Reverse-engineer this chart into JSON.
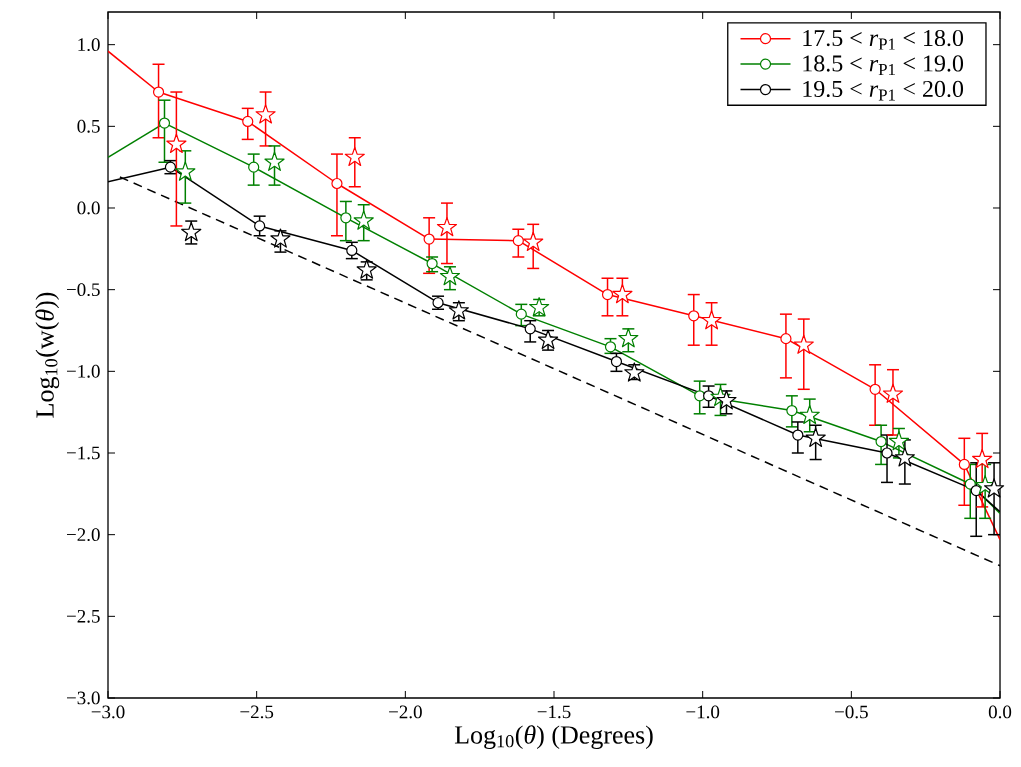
{
  "chart_data": {
    "type": "line",
    "xlabel": "Log$_{10}$(*θ*) (Degrees)",
    "ylabel": "Log$_{10}$(w(*θ*))",
    "xlim": [
      -3,
      0
    ],
    "ylim": [
      -3,
      1.2
    ],
    "xticks": [
      {
        "value": -3,
        "label": "−3.0"
      },
      {
        "value": -2.5,
        "label": "−2.5"
      },
      {
        "value": -2,
        "label": "−2.0"
      },
      {
        "value": -1.5,
        "label": "−1.5"
      },
      {
        "value": -1,
        "label": "−1.0"
      },
      {
        "value": -0.5,
        "label": "−0.5"
      },
      {
        "value": 0,
        "label": "0.0"
      }
    ],
    "yticks": [
      {
        "value": -3,
        "label": "−3.0"
      },
      {
        "value": -2.5,
        "label": "−2.5"
      },
      {
        "value": -2,
        "label": "−2.0"
      },
      {
        "value": -1.5,
        "label": "−1.5"
      },
      {
        "value": -1,
        "label": "−1.0"
      },
      {
        "value": -0.5,
        "label": "−0.5"
      },
      {
        "value": 0,
        "label": "0.0"
      },
      {
        "value": 0.5,
        "label": "0.5"
      },
      {
        "value": 1,
        "label": "1.0"
      }
    ],
    "legend": "top right",
    "series": [
      {
        "color": "#ff0000",
        "x": [
          -3,
          -2.83
        ],
        "values": [
          0.96,
          0.71
        ]
      },
      {
        "color": "#ff0000",
        "x": [
          -0.12,
          0
        ],
        "values": [
          -1.57,
          -2.03
        ]
      },
      {
        "color": "#008000",
        "x": [
          -3,
          -2.81
        ],
        "values": [
          0.31,
          0.52
        ]
      },
      {
        "color": "#008000",
        "x": [
          -0.1,
          0
        ],
        "values": [
          -1.69,
          -1.87
        ]
      },
      {
        "color": "#000000",
        "x": [
          -3,
          -2.79
        ],
        "values": [
          0.16,
          0.25
        ]
      },
      {
        "color": "#000000",
        "x": [
          -0.08,
          0
        ],
        "values": [
          -1.73,
          -1.86
        ]
      },
      {
        "color": "#000000",
        "line_style": "dashed",
        "x": [
          -2.96,
          0
        ],
        "values": [
          0.19,
          -2.19
        ]
      },
      {
        "name": "17.5 < *r*$_{P1}$ < 18.0",
        "color": "#ff0000",
        "marker": "circle",
        "x": [
          -2.83,
          -2.53,
          -2.23,
          -1.92,
          -1.62,
          -1.32,
          -1.03,
          -0.72,
          -0.42,
          -0.12
        ],
        "values": [
          0.71,
          0.53,
          0.15,
          -0.19,
          -0.2,
          -0.53,
          -0.66,
          -0.8,
          -1.11,
          -1.57
        ],
        "errors": [
          [
            0.43,
            0.88
          ],
          [
            0.42,
            0.61
          ],
          [
            -0.17,
            0.33
          ],
          [
            -0.4,
            -0.06
          ],
          [
            -0.3,
            -0.13
          ],
          [
            -0.66,
            -0.43
          ],
          [
            -0.84,
            -0.53
          ],
          [
            -1.04,
            -0.65
          ],
          [
            -1.33,
            -0.96
          ],
          [
            -1.82,
            -1.41
          ]
        ]
      },
      {
        "name": "18.5 < *r*$_{P1}$ < 19.0",
        "color": "#008000",
        "marker": "circle",
        "x": [
          -2.81,
          -2.51,
          -2.2,
          -1.91,
          -1.61,
          -1.31,
          -1.01,
          -0.7,
          -0.4,
          -0.1
        ],
        "values": [
          0.52,
          0.25,
          -0.06,
          -0.34,
          -0.65,
          -0.85,
          -1.15,
          -1.24,
          -1.43,
          -1.69
        ],
        "errors": [
          [
            0.28,
            0.66
          ],
          [
            0.14,
            0.33
          ],
          [
            -0.2,
            0.04
          ],
          [
            -0.39,
            -0.3
          ],
          [
            -0.72,
            -0.59
          ],
          [
            -0.89,
            -0.8
          ],
          [
            -1.26,
            -1.06
          ],
          [
            -1.34,
            -1.15
          ],
          [
            -1.57,
            -1.33
          ],
          [
            -1.9,
            -1.57
          ]
        ]
      },
      {
        "name": "19.5 < *r*$_{P1}$ < 20.0",
        "color": "#000000",
        "marker": "circle",
        "x": [
          -2.79,
          -2.49,
          -2.18,
          -1.89,
          -1.58,
          -1.29,
          -0.98,
          -0.68,
          -0.38,
          -0.08
        ],
        "values": [
          0.25,
          -0.11,
          -0.26,
          -0.58,
          -0.74,
          -0.94,
          -1.15,
          -1.39,
          -1.5,
          -1.73
        ],
        "errors": [
          [
            0.21,
            0.29
          ],
          [
            -0.17,
            -0.05
          ],
          [
            -0.31,
            -0.21
          ],
          [
            -0.62,
            -0.54
          ],
          [
            -0.82,
            -0.69
          ],
          [
            -1.0,
            -0.89
          ],
          [
            -1.22,
            -1.09
          ],
          [
            -1.5,
            -1.31
          ],
          [
            -1.68,
            -1.39
          ],
          [
            -2.01,
            -1.56
          ]
        ]
      },
      {
        "type": "scatter",
        "color": "#ff0000",
        "marker": "star",
        "x": [
          -2.77,
          -2.47,
          -2.17,
          -1.86,
          -1.57,
          -1.27,
          -0.97,
          -0.66,
          -0.36,
          -0.06
        ],
        "values": [
          0.39,
          0.57,
          0.31,
          -0.12,
          -0.21,
          -0.53,
          -0.69,
          -0.84,
          -1.14,
          -1.54
        ],
        "errors": [
          [
            -0.11,
            0.71
          ],
          [
            0.38,
            0.71
          ],
          [
            0.13,
            0.43
          ],
          [
            -0.34,
            0.03
          ],
          [
            -0.37,
            -0.1
          ],
          [
            -0.66,
            -0.43
          ],
          [
            -0.84,
            -0.58
          ],
          [
            -1.11,
            -0.68
          ],
          [
            -1.39,
            -0.99
          ],
          [
            -1.83,
            -1.38
          ]
        ]
      },
      {
        "type": "scatter",
        "color": "#008000",
        "marker": "star",
        "x": [
          -2.74,
          -2.44,
          -2.14,
          -1.85,
          -1.55,
          -1.25,
          -0.94,
          -0.64,
          -0.34,
          -0.05
        ],
        "values": [
          0.22,
          0.28,
          -0.08,
          -0.42,
          -0.61,
          -0.8,
          -1.16,
          -1.27,
          -1.43,
          -1.7
        ],
        "errors": [
          [
            0.03,
            0.35
          ],
          [
            0.14,
            0.38
          ],
          [
            -0.2,
            0.02
          ],
          [
            -0.5,
            -0.36
          ],
          [
            -0.66,
            -0.56
          ],
          [
            -0.88,
            -0.74
          ],
          [
            -1.27,
            -1.08
          ],
          [
            -1.37,
            -1.17
          ],
          [
            -1.53,
            -1.35
          ],
          [
            -1.9,
            -1.57
          ]
        ]
      },
      {
        "type": "scatter",
        "color": "#000000",
        "marker": "star",
        "x": [
          -2.72,
          -2.42,
          -2.13,
          -1.82,
          -1.52,
          -1.23,
          -0.92,
          -0.62,
          -0.32,
          -0.02
        ],
        "values": [
          -0.15,
          -0.19,
          -0.38,
          -0.63,
          -0.81,
          -1.01,
          -1.18,
          -1.41,
          -1.53,
          -1.72
        ],
        "errors": [
          [
            -0.22,
            -0.08
          ],
          [
            -0.27,
            -0.14
          ],
          [
            -0.44,
            -0.33
          ],
          [
            -0.69,
            -0.58
          ],
          [
            -0.87,
            -0.75
          ],
          [
            -1.05,
            -0.96
          ],
          [
            -1.26,
            -1.12
          ],
          [
            -1.54,
            -1.33
          ],
          [
            -1.69,
            -1.42
          ],
          [
            -2.0,
            -1.56
          ]
        ]
      }
    ]
  }
}
